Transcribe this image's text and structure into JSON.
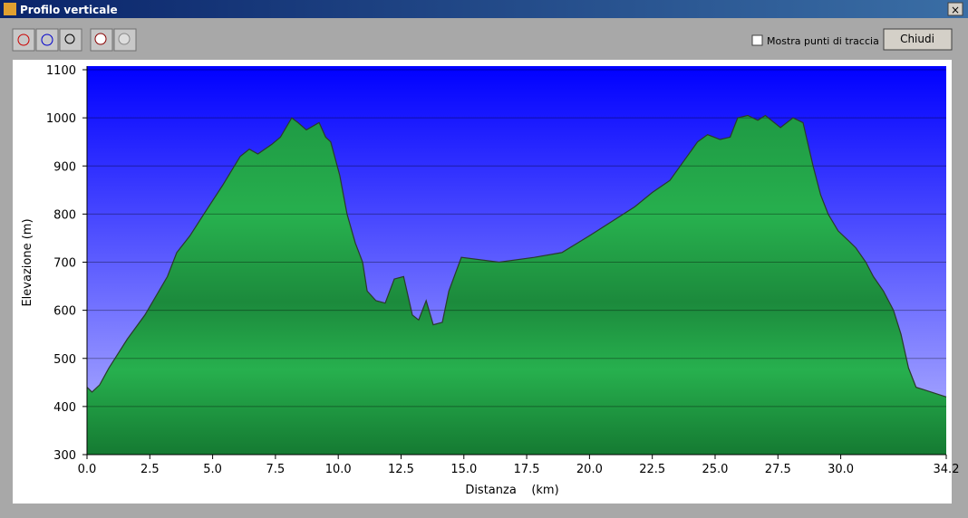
{
  "window": {
    "title": "Profilo verticale",
    "checkbox_label": "Mostra punti di traccia",
    "button": "Chiudi"
  },
  "chart_data": {
    "type": "area",
    "xlabel": "Distanza    (km)",
    "ylabel": "Elevazione (m)",
    "x": [
      0,
      0.2,
      0.5,
      0.87,
      1.6,
      2.3,
      3.2,
      3.57,
      4.1,
      4.65,
      5.4,
      6.1,
      6.46,
      6.8,
      7.36,
      7.7,
      8.15,
      8.4,
      8.73,
      9.24,
      9.5,
      9.7,
      10.06,
      10.35,
      10.68,
      10.97,
      11.15,
      11.5,
      11.87,
      12.23,
      12.6,
      12.95,
      13.2,
      13.5,
      13.78,
      14.14,
      14.4,
      14.9,
      16.4,
      17.8,
      18.9,
      20,
      21.8,
      22.5,
      23.2,
      24.3,
      24.7,
      25.2,
      25.6,
      25.9,
      26.3,
      26.7,
      27.0,
      27.6,
      28.1,
      28.5,
      28.9,
      29.2,
      29.5,
      29.9,
      30.3,
      30.6,
      31.0,
      31.3,
      31.7,
      32.1,
      32.4,
      32.7,
      33.0,
      34.2
    ],
    "series": [
      {
        "name": "Elevazione",
        "color": "#24a84a",
        "values": [
          440,
          430,
          445,
          480,
          540,
          590,
          670,
          720,
          755,
          800,
          860,
          920,
          935,
          925,
          945,
          960,
          1000,
          990,
          975,
          990,
          960,
          950,
          880,
          800,
          740,
          700,
          640,
          620,
          615,
          665,
          670,
          590,
          580,
          620,
          570,
          575,
          640,
          710,
          700,
          710,
          720,
          755,
          815,
          845,
          870,
          950,
          965,
          955,
          960,
          1000,
          1005,
          995,
          1005,
          980,
          1000,
          990,
          900,
          840,
          800,
          765,
          745,
          730,
          700,
          670,
          640,
          600,
          550,
          480,
          440,
          420
        ]
      }
    ],
    "xlim": [
      0,
      34.2
    ],
    "ylim": [
      300,
      1100
    ],
    "xticks": [
      {
        "value": 0,
        "label": "0.0"
      },
      2.5,
      {
        "value": 5,
        "label": "5.0"
      },
      7.5,
      {
        "value": 10,
        "label": "10.0"
      },
      12.5,
      {
        "value": 15,
        "label": "15.0"
      },
      17.5,
      {
        "value": 20,
        "label": "20.0"
      },
      22.5,
      {
        "value": 25,
        "label": "25.0"
      },
      27.5,
      {
        "value": 30,
        "label": "30.0"
      },
      34.2
    ],
    "yticks": [
      300,
      400,
      500,
      600,
      700,
      800,
      900,
      1000,
      1100
    ],
    "grid": true
  }
}
